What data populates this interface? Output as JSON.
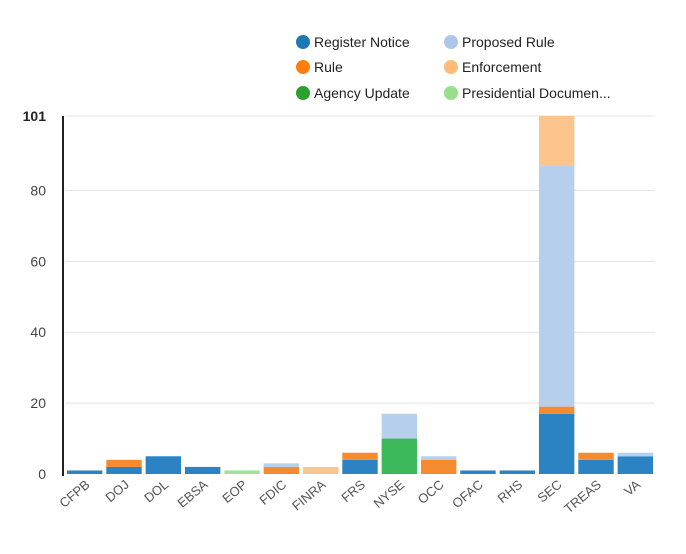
{
  "chart_data": {
    "type": "bar",
    "stacked": true,
    "title": "",
    "xlabel": "",
    "ylabel": "",
    "ylim": [
      0,
      101
    ],
    "y_ticks": [
      0,
      20,
      40,
      60,
      80
    ],
    "y_max_label": "101",
    "grid": true,
    "legend_position": "top",
    "categories": [
      "CFPB",
      "DOJ",
      "DOL",
      "EBSA",
      "EOP",
      "FDIC",
      "FINRA",
      "FRS",
      "NYSE",
      "OCC",
      "OFAC",
      "RHS",
      "SEC",
      "TREAS",
      "VA"
    ],
    "series": [
      {
        "name": "Register Notice",
        "color": "#2b83c4",
        "legend_color": "#1f77b4",
        "values": [
          1,
          2,
          5,
          2,
          0,
          0,
          0,
          4,
          0,
          0,
          1,
          1,
          17,
          4,
          5
        ]
      },
      {
        "name": "Rule",
        "color": "#f58a2e",
        "legend_color": "#ff7f0e",
        "values": [
          0,
          2,
          0,
          0,
          0,
          2,
          0,
          2,
          0,
          4,
          0,
          0,
          2,
          2,
          0
        ]
      },
      {
        "name": "Agency Update",
        "color": "#3cb95a",
        "legend_color": "#2ca02c",
        "values": [
          0,
          0,
          0,
          0,
          0,
          0,
          0,
          0,
          10,
          0,
          0,
          0,
          0,
          0,
          0
        ]
      },
      {
        "name": "Proposed Rule",
        "color": "#b6cfec",
        "legend_color": "#aec7e8",
        "values": [
          0,
          0,
          0,
          0,
          0,
          1,
          0,
          0,
          7,
          1,
          0,
          0,
          68,
          0,
          1
        ]
      },
      {
        "name": "Enforcement",
        "color": "#fdc58d",
        "legend_color": "#ffbb78",
        "values": [
          0,
          0,
          0,
          0,
          0,
          0,
          2,
          0,
          0,
          0,
          0,
          0,
          14,
          0,
          0
        ]
      },
      {
        "name": "Presidential Documen...",
        "color": "#9be49b",
        "legend_color": "#98df8a",
        "values": [
          0,
          0,
          0,
          0,
          1,
          0,
          0,
          0,
          0,
          0,
          0,
          0,
          0,
          0,
          0
        ]
      }
    ]
  }
}
